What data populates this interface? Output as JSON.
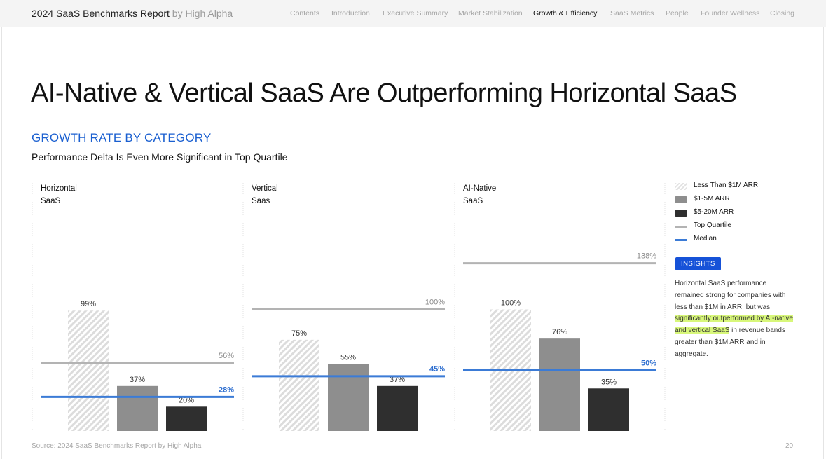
{
  "header": {
    "brand_title": "2024 SaaS Benchmarks Report",
    "brand_by": "by High Alpha",
    "nav": [
      {
        "label": "Contents",
        "active": false
      },
      {
        "label": "Introduction",
        "active": false
      },
      {
        "label": "Executive Summary",
        "active": false
      },
      {
        "label": "Market Stabilization",
        "active": false
      },
      {
        "label": "Growth & Efficiency",
        "active": true
      },
      {
        "label": "SaaS Metrics",
        "active": false
      },
      {
        "label": "People",
        "active": false
      },
      {
        "label": "Founder Wellness",
        "active": false
      },
      {
        "label": "Closing",
        "active": false
      }
    ]
  },
  "page": {
    "title": "AI-Native & Vertical SaaS Are Outperforming Horizontal SaaS",
    "section_label": "GROWTH RATE BY CATEGORY",
    "subtitle": "Performance Delta Is Even More Significant in Top Quartile"
  },
  "chart_data": {
    "type": "bar",
    "series_names": [
      "Less Than $1M ARR",
      "$1-5M ARR",
      "$5-20M ARR"
    ],
    "value_unit": "%",
    "panels": [
      {
        "label_line1": "Horizontal",
        "label_line2": "SaaS",
        "values": [
          99,
          37,
          20
        ],
        "top_quartile": 56,
        "median": 28
      },
      {
        "label_line1": "Vertical",
        "label_line2": "Saas",
        "values": [
          75,
          55,
          37
        ],
        "top_quartile": 100,
        "median": 45
      },
      {
        "label_line1": "AI-Native",
        "label_line2": "SaaS",
        "values": [
          100,
          76,
          35
        ],
        "top_quartile": 138,
        "median": 50
      }
    ],
    "colors": {
      "series_1": "hatched light gray",
      "series_2": "#8e8e8e",
      "series_3": "#2f2f2f",
      "top_quartile": "#b3b3b3",
      "median": "#3b7bd6"
    }
  },
  "legend": {
    "items": [
      {
        "label": "Less Than $1M ARR",
        "kind": "hatch"
      },
      {
        "label": "$1-5M ARR",
        "kind": "gray"
      },
      {
        "label": "$5-20M ARR",
        "kind": "dark"
      },
      {
        "label": "Top Quartile",
        "kind": "line-gray"
      },
      {
        "label": "Median",
        "kind": "line-blue"
      }
    ]
  },
  "insights": {
    "badge": "INSIGHTS",
    "text_before": "Horizontal SaaS performance remained strong for companies with less than $1M in ARR, but was ",
    "text_highlight": "significantly outperformed by AI-native and vertical SaaS",
    "text_after": " in revenue bands greater than $1M ARR and in aggregate."
  },
  "footer": {
    "source": "Source: 2024 SaaS Benchmarks Report by High Alpha",
    "page_number": "20"
  }
}
